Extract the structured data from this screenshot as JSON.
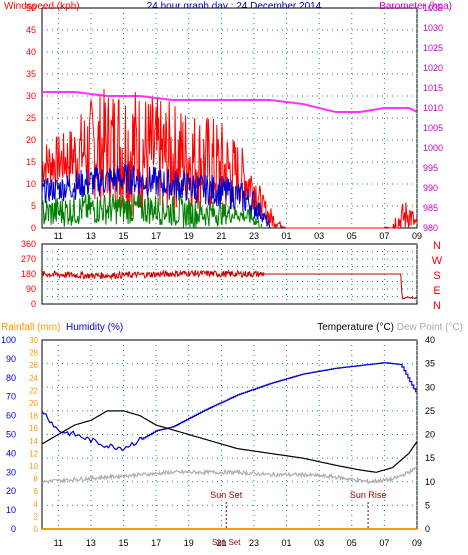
{
  "title": "24 hour graph day : 24 December 2014",
  "chart_data": [
    {
      "type": "line",
      "panel": "wind",
      "left_axis": {
        "label": "Windspeed (kph)",
        "range": [
          0,
          50
        ],
        "step": 5,
        "color": "#ff0000"
      },
      "right_axis": {
        "label": "Barometer (hpa)",
        "range": [
          980,
          1035
        ],
        "step": 5,
        "color": "#cc00cc"
      },
      "x_ticks": [
        "11",
        "13",
        "15",
        "17",
        "19",
        "21",
        "23",
        "01",
        "03",
        "05",
        "07",
        "09"
      ],
      "grid": true,
      "series": [
        {
          "name": "Barometer (hpa)",
          "axis": "right",
          "color": "#ff33ff",
          "x": [
            10.0,
            12.0,
            14.0,
            16.0,
            18.0,
            20.0,
            22.0,
            24.0,
            26.0,
            28.0,
            29.5,
            31.0,
            32.5,
            33.0
          ],
          "values": [
            1014,
            1014,
            1013,
            1013,
            1012,
            1012,
            1012,
            1012,
            1011,
            1009,
            1009,
            1010,
            1010,
            1009
          ]
        },
        {
          "axis": "left",
          "style": "spiky",
          "color": "#ff0000",
          "x": [
            10.0,
            11.5,
            13.0,
            15.0,
            17.0,
            19.0,
            21.0,
            22.0,
            23.0,
            23.5,
            24.0,
            24.5,
            25.0,
            31.0,
            31.8,
            32.5,
            33.0
          ],
          "values": [
            14,
            15,
            17,
            17,
            15,
            15,
            12,
            12,
            9,
            5,
            2,
            1,
            0,
            0,
            1,
            3,
            0
          ],
          "max_values": [
            20,
            22,
            30,
            35,
            30,
            28,
            25,
            20,
            15,
            8,
            5,
            2,
            0,
            0,
            5,
            7,
            2
          ]
        },
        {
          "axis": "left",
          "style": "spiky",
          "color": "#0000cc",
          "x": [
            10.0,
            13.0,
            15.0,
            17.0,
            19.0,
            21.0,
            22.0,
            23.0,
            23.5,
            24.0
          ],
          "values": [
            8,
            10,
            11,
            10,
            9,
            8,
            7,
            5,
            3,
            0
          ],
          "max_values": [
            11,
            14,
            15,
            14,
            13,
            12,
            11,
            9,
            5,
            1
          ]
        },
        {
          "axis": "left",
          "style": "spiky",
          "color": "#008000",
          "x": [
            10.0,
            13.0,
            15.0,
            17.0,
            19.0,
            21.0,
            22.0,
            23.0,
            23.5
          ],
          "values": [
            3,
            4,
            4,
            4,
            3,
            3,
            3,
            2,
            0
          ],
          "max_values": [
            7,
            8,
            8,
            8,
            7,
            6,
            5,
            4,
            1
          ]
        }
      ]
    },
    {
      "type": "line",
      "panel": "direction",
      "left_axis": {
        "range": [
          0,
          360
        ],
        "ticks": [
          0,
          45,
          90,
          135,
          180,
          225,
          270,
          315,
          360
        ],
        "color": "#ff0000"
      },
      "right_labels": [
        "N",
        "W",
        "S",
        "E",
        "N"
      ],
      "grid": true,
      "series": [
        {
          "color": "#cc0000",
          "style": "noisy",
          "x": [
            10.0,
            13.0,
            16.0,
            19.0,
            21.0,
            23.5,
            23.6,
            32.0,
            32.1,
            32.5,
            33.0
          ],
          "values": [
            180,
            170,
            175,
            185,
            180,
            180,
            180,
            180,
            30,
            40,
            35
          ]
        }
      ]
    },
    {
      "type": "line",
      "panel": "temperature",
      "axes": [
        {
          "label": "Rainfall (mm)",
          "range": [
            0,
            30
          ],
          "step": 2,
          "color": "#ff9900"
        },
        {
          "label": "Humidity (%)",
          "range": [
            0,
            100
          ],
          "step": 10,
          "color": "#0000cc"
        },
        {
          "label": "Temperature (°C)",
          "range": [
            0,
            40
          ],
          "step": 5,
          "color": "#000000"
        },
        {
          "label": "Dew Point (°C)",
          "color": "#aaaaaa"
        }
      ],
      "x_ticks": [
        "11",
        "13",
        "15",
        "17",
        "19",
        "21",
        "23",
        "01",
        "03",
        "05",
        "07",
        "09"
      ],
      "annotations": [
        {
          "text": "Sun Set",
          "x": 21.3
        },
        {
          "text": "Sun Rise",
          "x": 30.0
        }
      ],
      "bottom_labels": [
        "Sun Set"
      ],
      "grid": true,
      "series": [
        {
          "name": "Humidity (%)",
          "axis": "humidity",
          "color": "#0000cc",
          "x": [
            10.0,
            11.0,
            12.0,
            13.0,
            14.0,
            15.0,
            16.0,
            17.0,
            18.0,
            20.0,
            22.0,
            24.0,
            26.0,
            28.0,
            30.0,
            31.0,
            32.0,
            33.0
          ],
          "values": [
            63,
            52,
            50,
            47,
            44,
            43,
            47,
            52,
            54,
            63,
            71,
            77,
            82,
            85,
            87,
            88,
            87,
            71
          ]
        },
        {
          "name": "Temperature (°C)",
          "axis": "temperature",
          "color": "#000000",
          "x": [
            10.0,
            11.0,
            12.0,
            13.0,
            14.0,
            15.0,
            16.0,
            17.0,
            18.0,
            19.0,
            20.0,
            22.0,
            24.0,
            26.0,
            28.0,
            29.5,
            30.5,
            31.5,
            32.5,
            33.0
          ],
          "values": [
            18,
            20,
            22,
            23,
            25,
            25,
            24,
            22,
            21,
            20,
            19,
            17,
            16,
            15,
            13.5,
            12.5,
            12,
            13,
            16,
            18.5
          ]
        },
        {
          "name": "Dew Point (°C)",
          "axis": "temperature",
          "color": "#b0b0b0",
          "x": [
            10.0,
            12.0,
            14.0,
            16.0,
            18.0,
            20.0,
            22.0,
            24.0,
            26.0,
            28.0,
            30.0,
            31.5,
            32.5,
            33.0
          ],
          "values": [
            10,
            10.5,
            11,
            11.5,
            12,
            12,
            12,
            11.5,
            11.5,
            11,
            10,
            10.5,
            12,
            13
          ]
        },
        {
          "name": "Rainfall (mm)",
          "axis": "rainfall",
          "color": "#ff9900",
          "x": [
            10.0,
            33.0
          ],
          "values": [
            0,
            0
          ]
        }
      ]
    }
  ]
}
